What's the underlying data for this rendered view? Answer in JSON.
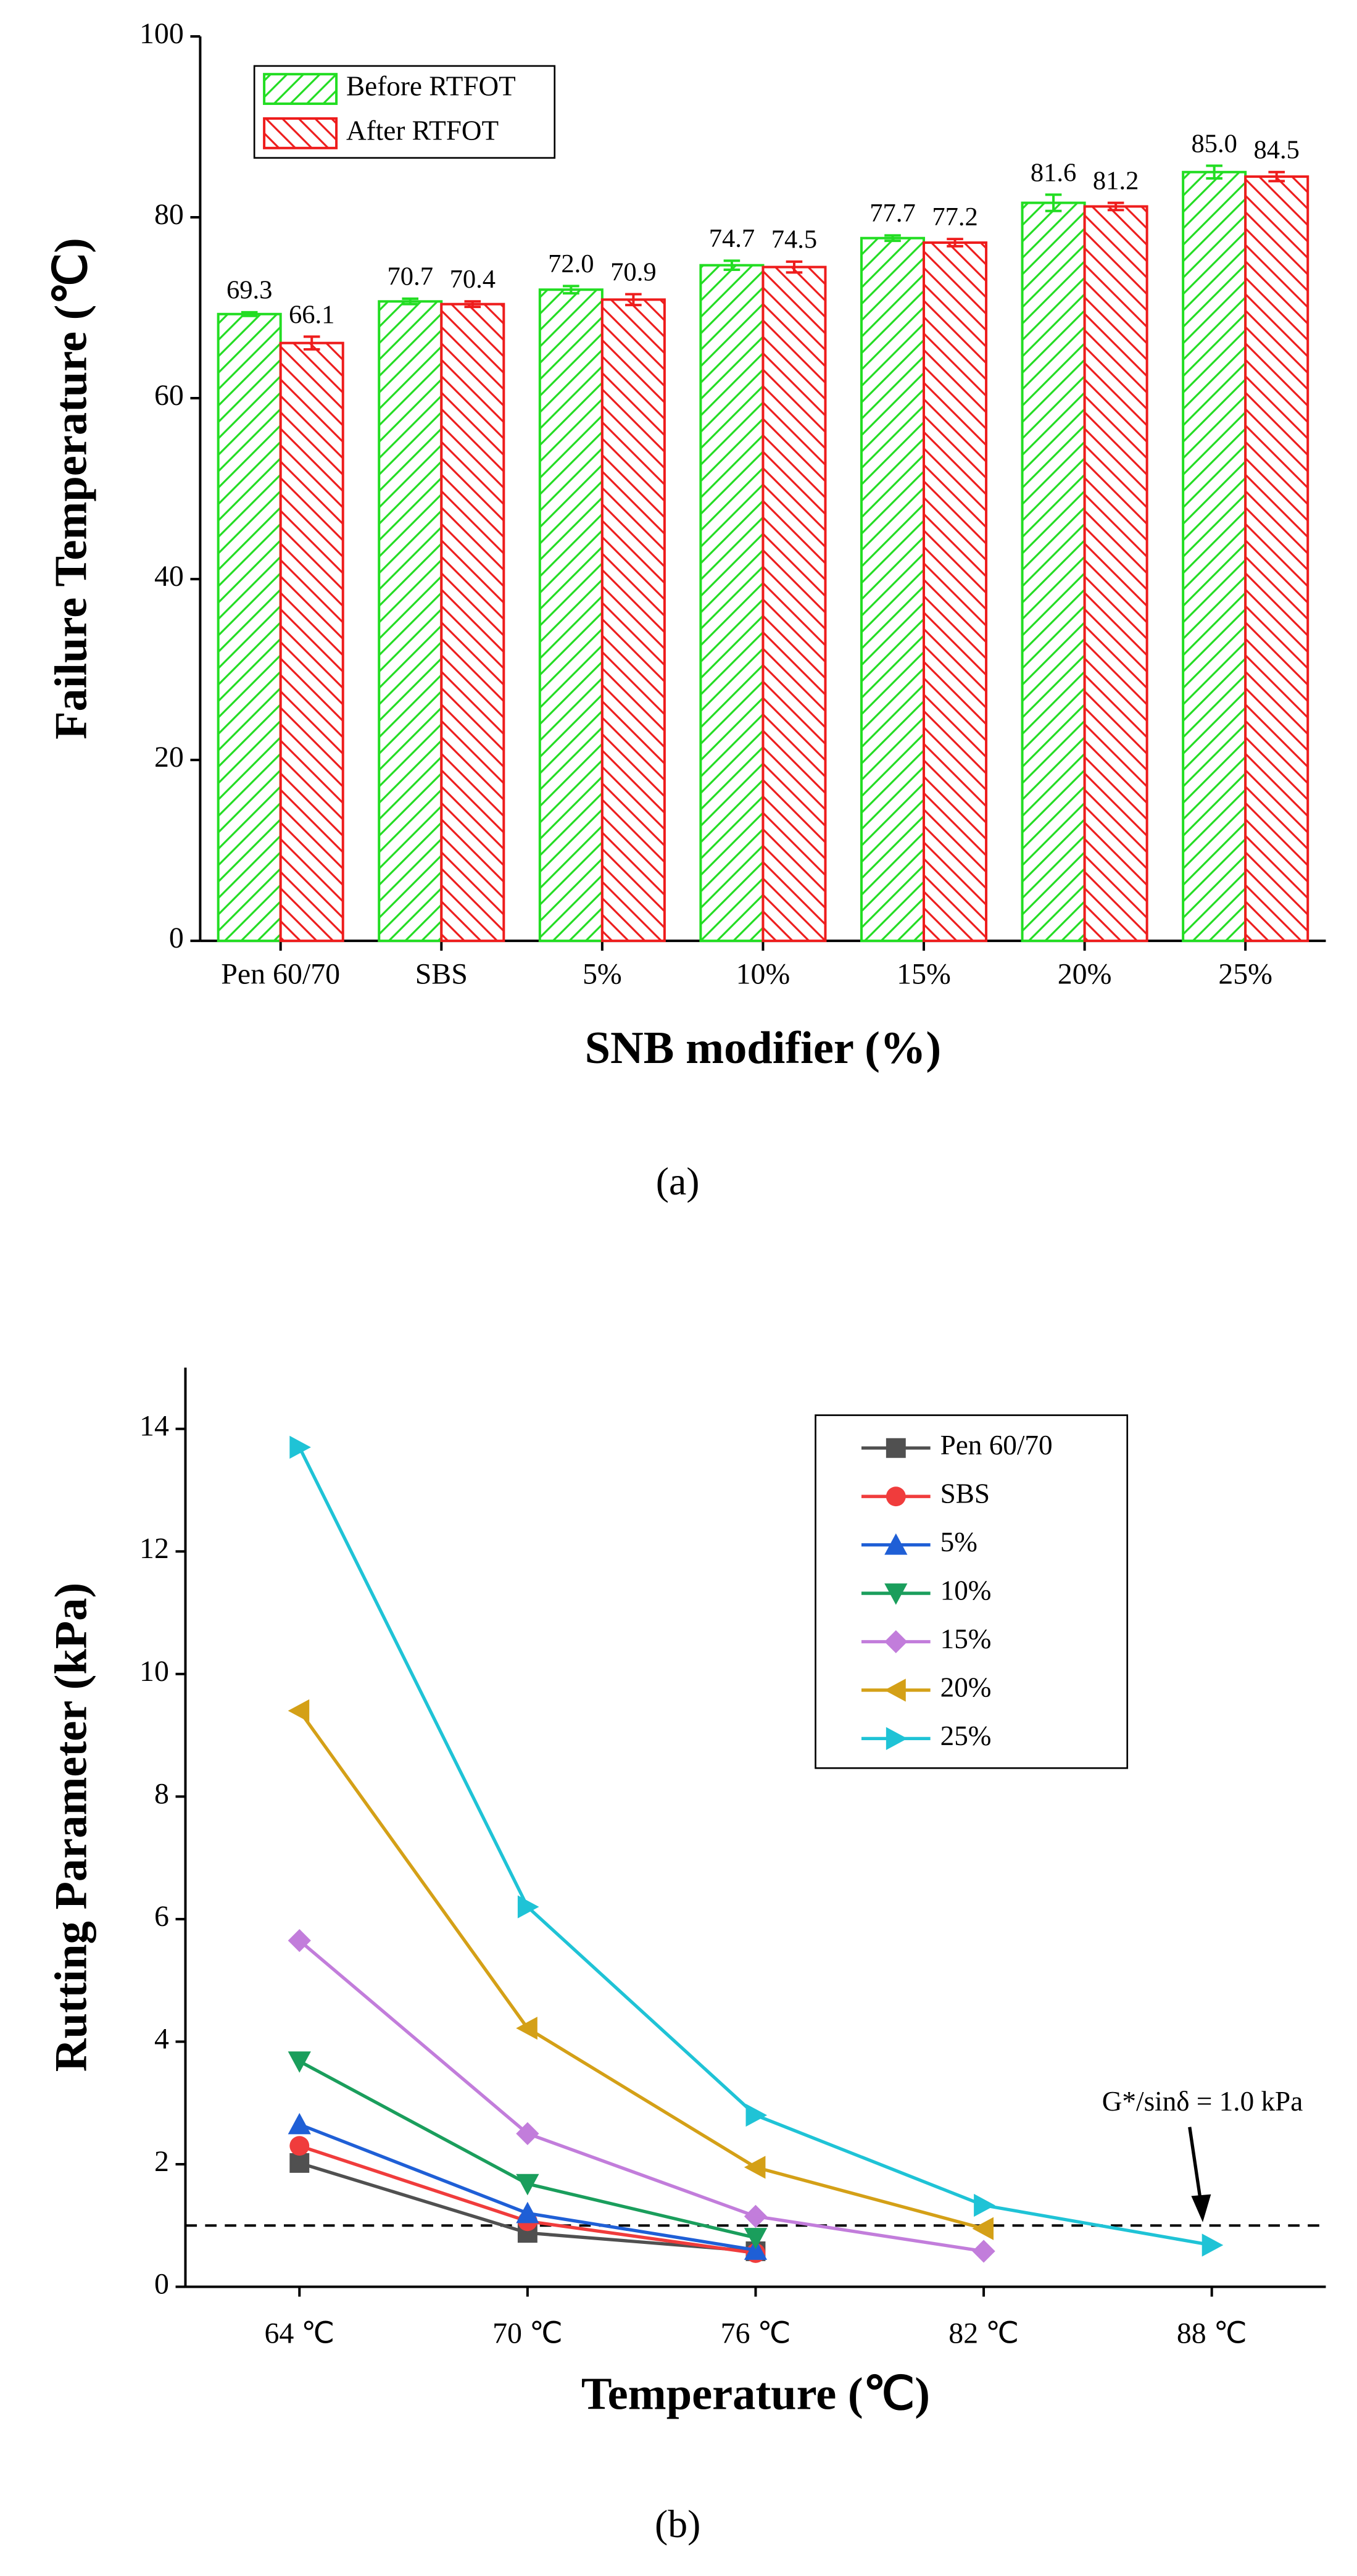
{
  "chart_data": [
    {
      "type": "bar",
      "xlabel": "SNB modifier (%)",
      "ylabel": "Failure Temperature (℃)",
      "caption": "(a)",
      "categories": [
        "Pen 60/70",
        "SBS",
        "5%",
        "10%",
        "15%",
        "20%",
        "25%"
      ],
      "series": [
        {
          "name": "Before RTFOT",
          "color": "#22dd22",
          "values": [
            69.3,
            70.7,
            72.0,
            74.7,
            77.7,
            81.6,
            85.0
          ],
          "value_labels": [
            "69.3",
            "70.7",
            "72.0",
            "74.7",
            "77.7",
            "81.6",
            "85.0"
          ],
          "errors": [
            0.2,
            0.3,
            0.4,
            0.5,
            0.3,
            0.9,
            0.7
          ]
        },
        {
          "name": "After RTFOT",
          "color": "#ee1c1c",
          "values": [
            66.1,
            70.4,
            70.9,
            74.5,
            77.2,
            81.2,
            84.5
          ],
          "value_labels": [
            "66.1",
            "70.4",
            "70.9",
            "74.5",
            "77.2",
            "81.2",
            "84.5"
          ],
          "errors": [
            0.7,
            0.3,
            0.6,
            0.6,
            0.4,
            0.4,
            0.5
          ]
        }
      ],
      "ylim": [
        0,
        100
      ],
      "yticks": [
        0,
        20,
        40,
        60,
        80,
        100
      ],
      "legend": "upper left"
    },
    {
      "type": "line",
      "xlabel": "Temperature (℃)",
      "ylabel": "Rutting Parameter (kPa)",
      "caption": "(b)",
      "categories": [
        "64 ℃",
        "70 ℃",
        "76 ℃",
        "82 ℃",
        "88 ℃"
      ],
      "series": [
        {
          "name": "Pen 60/70",
          "color": "#505050",
          "marker": "square",
          "values": [
            2.02,
            0.88,
            0.58,
            null,
            null
          ]
        },
        {
          "name": "SBS",
          "color": "#f03c3c",
          "marker": "circle",
          "values": [
            2.3,
            1.07,
            0.55,
            null,
            null
          ]
        },
        {
          "name": "5%",
          "color": "#1f5fd6",
          "marker": "triangle-up",
          "values": [
            2.65,
            1.2,
            0.6,
            null,
            null
          ]
        },
        {
          "name": "10%",
          "color": "#1a9e5c",
          "marker": "triangle-down",
          "values": [
            3.68,
            1.68,
            0.8,
            null,
            null
          ]
        },
        {
          "name": "15%",
          "color": "#c27ddb",
          "marker": "diamond",
          "values": [
            5.65,
            2.5,
            1.15,
            0.58,
            null
          ]
        },
        {
          "name": "20%",
          "color": "#d4a017",
          "marker": "triangle-left",
          "values": [
            9.4,
            4.22,
            1.95,
            0.95,
            null
          ]
        },
        {
          "name": "25%",
          "color": "#1fc3d6",
          "marker": "triangle-right",
          "values": [
            13.7,
            6.2,
            2.8,
            1.33,
            0.68
          ]
        }
      ],
      "ylim": [
        0,
        15
      ],
      "yticks": [
        0,
        2,
        4,
        6,
        8,
        10,
        12,
        14
      ],
      "hline": 1.0,
      "annotation": "G*/sinδ = 1.0 kPa",
      "legend": "upper right"
    }
  ]
}
